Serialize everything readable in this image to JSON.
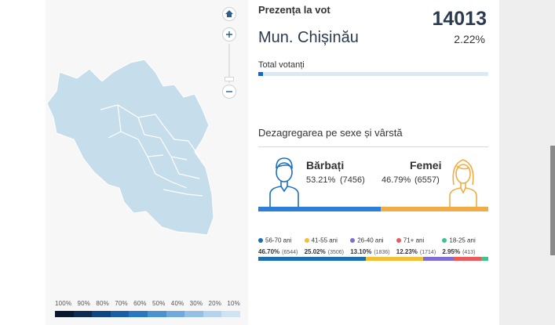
{
  "map": {
    "legend_labels": [
      "100%",
      "90%",
      "80%",
      "70%",
      "60%",
      "50%",
      "40%",
      "30%",
      "20%",
      "10%"
    ],
    "legend_colors": [
      "#08182e",
      "#0b2d55",
      "#104583",
      "#1a5ea8",
      "#2a78c2",
      "#4a92d0",
      "#70a9dc",
      "#94c0e6",
      "#b3d3ee",
      "#cfe3f4"
    ],
    "region_color": "#c6ddec",
    "boundary_color": "#ffffff"
  },
  "turnout": {
    "label": "Prezența la vot",
    "count": "14013",
    "place": "Mun. Chișinău",
    "percent": "2.22%",
    "total_label": "Total votanți",
    "total_fraction": 0.022,
    "accent": "#1566c8"
  },
  "sex": {
    "title": "Dezagregarea pe sexe și vârstă",
    "male": {
      "label": "Bărbați",
      "percent": "53.21%",
      "count": "(7456)",
      "share": 53.21,
      "color": "#2b7fd8"
    },
    "female": {
      "label": "Femei",
      "percent": "46.79%",
      "count": "(6557)",
      "share": 46.79,
      "color": "#f0ad45"
    }
  },
  "ages": [
    {
      "label": "56-70 ani",
      "percent": "46.70%",
      "count": "(6544)",
      "share": 46.7,
      "color": "#1b6fb0"
    },
    {
      "label": "41-55 ani",
      "percent": "25.02%",
      "count": "(3506)",
      "share": 25.02,
      "color": "#f2c037"
    },
    {
      "label": "26-40 ani",
      "percent": "13.10%",
      "count": "(1836)",
      "share": 13.1,
      "color": "#7e6ed4"
    },
    {
      "label": "71+ ani",
      "percent": "12.23%",
      "count": "(1714)",
      "share": 12.23,
      "color": "#ea5a5a"
    },
    {
      "label": "18-25 ani",
      "percent": "2.95%",
      "count": "(413)",
      "share": 2.95,
      "color": "#3cc48a"
    }
  ]
}
